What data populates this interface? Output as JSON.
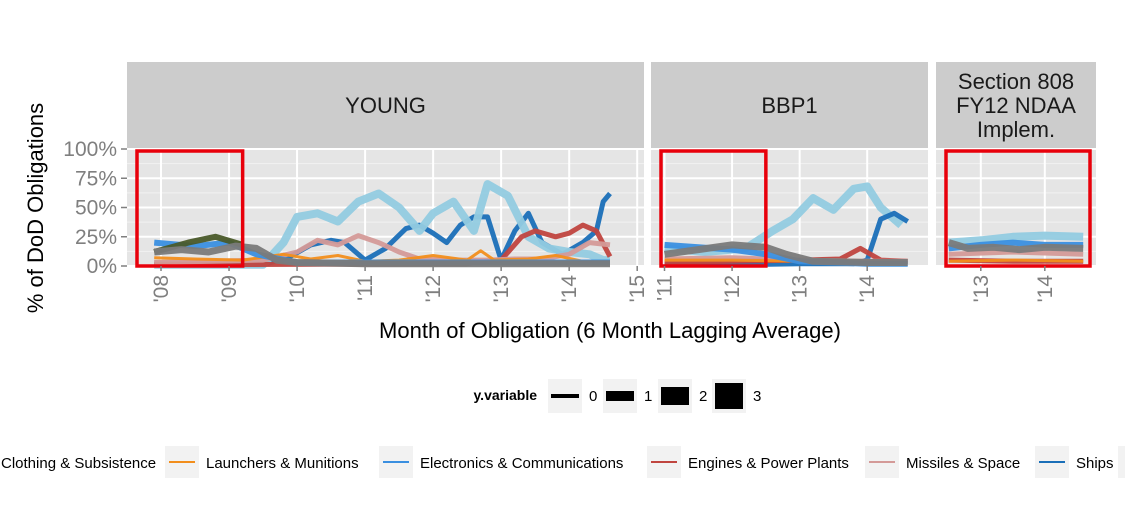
{
  "chart_data": {
    "type": "line",
    "ylabel": "% of DoD Obligations",
    "xlabel": "Month of Obligation (6 Month Lagging Average)",
    "y_ticks": [
      "100%",
      "75%",
      "50%",
      "25%",
      "0%"
    ],
    "ylim": [
      0,
      1
    ],
    "panels": [
      {
        "strip": [
          "YOUNG"
        ],
        "xlim": [
          2007.5,
          2015.1
        ],
        "x_ticks": [
          {
            "value": 2008,
            "label": "'08"
          },
          {
            "value": 2009,
            "label": "'09"
          },
          {
            "value": 2010,
            "label": "'10"
          },
          {
            "value": 2011,
            "label": "'11"
          },
          {
            "value": 2012,
            "label": "'12"
          },
          {
            "value": 2013,
            "label": "'13"
          },
          {
            "value": 2014,
            "label": "'14"
          },
          {
            "value": 2015,
            "label": "'15"
          }
        ],
        "highlight": [
          2007.5,
          2009.2
        ],
        "series": [
          {
            "key": "ships",
            "x": [
              2007.9,
              2008.5,
              2009.0,
              2009.5,
              2009.9,
              2010.2,
              2010.5,
              2010.7,
              2011.0,
              2011.3,
              2011.6,
              2011.8,
              2012.0,
              2012.2,
              2012.4,
              2012.6,
              2012.8,
              2013.0,
              2013.2,
              2013.4,
              2013.6,
              2013.9,
              2014.2,
              2014.4,
              2014.5,
              2014.6
            ],
            "y": [
              0.01,
              0.01,
              0.01,
              0.01,
              0.08,
              0.18,
              0.22,
              0.2,
              0.05,
              0.15,
              0.32,
              0.35,
              0.28,
              0.2,
              0.35,
              0.42,
              0.42,
              0.05,
              0.3,
              0.45,
              0.2,
              0.1,
              0.2,
              0.3,
              0.55,
              0.62
            ]
          },
          {
            "key": "ships_light",
            "x": [
              2007.9,
              2009.0,
              2009.5,
              2009.8,
              2010.0,
              2010.3,
              2010.6,
              2010.9,
              2011.2,
              2011.5,
              2011.8,
              2012.0,
              2012.3,
              2012.6,
              2012.8,
              2013.1,
              2013.4,
              2013.7,
              2014.0,
              2014.3,
              2014.5,
              2014.6
            ],
            "y": [
              0.01,
              0.01,
              0.01,
              0.2,
              0.42,
              0.45,
              0.38,
              0.55,
              0.62,
              0.5,
              0.3,
              0.45,
              0.55,
              0.3,
              0.7,
              0.6,
              0.25,
              0.15,
              0.12,
              0.1,
              0.05,
              0.05
            ]
          },
          {
            "key": "engines",
            "x": [
              2007.9,
              2012.5,
              2013.0,
              2013.3,
              2013.5,
              2013.8,
              2014.0,
              2014.2,
              2014.4,
              2014.6
            ],
            "y": [
              0.01,
              0.02,
              0.05,
              0.25,
              0.3,
              0.25,
              0.28,
              0.35,
              0.3,
              0.08
            ]
          },
          {
            "key": "missiles",
            "x": [
              2007.9,
              2009.5,
              2010.0,
              2010.3,
              2010.6,
              2010.9,
              2011.2,
              2011.5,
              2011.8,
              2012.0,
              2012.4,
              2012.8,
              2013.2,
              2013.6,
              2014.0,
              2014.3,
              2014.6
            ],
            "y": [
              0.03,
              0.05,
              0.12,
              0.22,
              0.18,
              0.26,
              0.2,
              0.12,
              0.06,
              0.06,
              0.05,
              0.05,
              0.06,
              0.06,
              0.1,
              0.2,
              0.18
            ]
          },
          {
            "key": "launchers",
            "x": [
              2007.9,
              2008.5,
              2009.2,
              2009.8,
              2010.2,
              2010.6,
              2011.0,
              2011.5,
              2012.0,
              2012.5,
              2012.7,
              2012.9,
              2013.4,
              2013.8,
              2014.2,
              2014.6
            ],
            "y": [
              0.07,
              0.06,
              0.05,
              0.1,
              0.06,
              0.09,
              0.04,
              0.05,
              0.09,
              0.05,
              0.13,
              0.05,
              0.06,
              0.09,
              0.04,
              0.04
            ]
          },
          {
            "key": "electronics",
            "x": [
              2007.9,
              2008.5,
              2009.0,
              2009.4,
              2010.0,
              2011.0,
              2012.0,
              2013.0,
              2014.0,
              2014.6
            ],
            "y": [
              0.2,
              0.17,
              0.2,
              0.1,
              0.03,
              0.03,
              0.03,
              0.03,
              0.03,
              0.03
            ]
          },
          {
            "key": "clothing",
            "x": [
              2007.9,
              2008.4,
              2008.8,
              2009.2
            ],
            "y": [
              0.12,
              0.2,
              0.25,
              0.18
            ]
          },
          {
            "key": "other",
            "x": [
              2007.9,
              2008.3,
              2008.7,
              2009.1,
              2009.4,
              2009.7,
              2010.0,
              2011.0,
              2012.0,
              2013.0,
              2014.0,
              2014.6
            ],
            "y": [
              0.12,
              0.14,
              0.12,
              0.17,
              0.15,
              0.05,
              0.03,
              0.02,
              0.02,
              0.02,
              0.02,
              0.02
            ]
          }
        ]
      },
      {
        "strip": [
          "BBP1"
        ],
        "xlim": [
          2010.8,
          2014.9
        ],
        "x_ticks": [
          {
            "value": 2011,
            "label": "'11"
          },
          {
            "value": 2012,
            "label": "'12"
          },
          {
            "value": 2013,
            "label": "'13"
          },
          {
            "value": 2014,
            "label": "'14"
          }
        ],
        "highlight": [
          2010.8,
          2012.5
        ],
        "series": [
          {
            "key": "ships_light",
            "x": [
              2011.0,
              2011.6,
              2012.2,
              2012.6,
              2012.9,
              2013.2,
              2013.5,
              2013.8,
              2014.0,
              2014.2,
              2014.5
            ],
            "y": [
              0.15,
              0.12,
              0.15,
              0.3,
              0.4,
              0.58,
              0.48,
              0.66,
              0.68,
              0.5,
              0.35
            ]
          },
          {
            "key": "ships",
            "x": [
              2011.0,
              2012.0,
              2013.0,
              2013.8,
              2014.0,
              2014.2,
              2014.4,
              2014.6
            ],
            "y": [
              0.01,
              0.01,
              0.02,
              0.02,
              0.05,
              0.4,
              0.45,
              0.38
            ]
          },
          {
            "key": "engines",
            "x": [
              2011.0,
              2012.0,
              2013.0,
              2013.6,
              2013.9,
              2014.2,
              2014.6
            ],
            "y": [
              0.03,
              0.04,
              0.05,
              0.06,
              0.15,
              0.05,
              0.04
            ]
          },
          {
            "key": "missiles",
            "x": [
              2011.0,
              2012.0,
              2013.0,
              2014.0,
              2014.6
            ],
            "y": [
              0.06,
              0.07,
              0.05,
              0.04,
              0.04
            ]
          },
          {
            "key": "launchers",
            "x": [
              2011.0,
              2012.0,
              2013.0,
              2014.0,
              2014.6
            ],
            "y": [
              0.05,
              0.05,
              0.04,
              0.03,
              0.03
            ]
          },
          {
            "key": "electronics",
            "x": [
              2011.0,
              2011.5,
              2012.0,
              2012.5,
              2013.0,
              2014.0,
              2014.6
            ],
            "y": [
              0.18,
              0.16,
              0.14,
              0.1,
              0.04,
              0.02,
              0.02
            ]
          },
          {
            "key": "other",
            "x": [
              2011.0,
              2011.5,
              2012.0,
              2012.5,
              2012.8,
              2013.2,
              2014.0,
              2014.6
            ],
            "y": [
              0.1,
              0.14,
              0.18,
              0.16,
              0.1,
              0.04,
              0.03,
              0.03
            ]
          }
        ]
      },
      {
        "strip": [
          "Section 808",
          "FY12 NDAA",
          "Implem."
        ],
        "xlim": [
          2012.3,
          2014.8
        ],
        "x_ticks": [
          {
            "value": 2013,
            "label": "'13"
          },
          {
            "value": 2014,
            "label": "'14"
          }
        ],
        "highlight": [
          2012.3,
          2014.8
        ],
        "series": [
          {
            "key": "ships_light",
            "x": [
              2012.5,
              2013.0,
              2013.5,
              2014.0,
              2014.6
            ],
            "y": [
              0.2,
              0.22,
              0.25,
              0.26,
              0.25
            ]
          },
          {
            "key": "electronics",
            "x": [
              2012.5,
              2013.0,
              2013.5,
              2014.0,
              2014.6
            ],
            "y": [
              0.15,
              0.18,
              0.2,
              0.18,
              0.18
            ]
          },
          {
            "key": "missiles",
            "x": [
              2012.5,
              2013.5,
              2014.6
            ],
            "y": [
              0.1,
              0.12,
              0.1
            ]
          },
          {
            "key": "engines",
            "x": [
              2012.5,
              2013.5,
              2014.6
            ],
            "y": [
              0.05,
              0.04,
              0.04
            ]
          },
          {
            "key": "launchers",
            "x": [
              2012.5,
              2013.5,
              2014.6
            ],
            "y": [
              0.04,
              0.05,
              0.04
            ]
          },
          {
            "key": "other",
            "x": [
              2012.5,
              2012.8,
              2013.2,
              2013.6,
              2014.0,
              2014.6
            ],
            "y": [
              0.2,
              0.15,
              0.16,
              0.14,
              0.16,
              0.15
            ]
          }
        ]
      }
    ],
    "size_legend": {
      "title": "y.variable",
      "items": [
        "0",
        "1",
        "2",
        "3"
      ]
    },
    "color_legend": [
      {
        "key": "clothing",
        "label": "Clothing & Subsistence",
        "color": "#4a5a2a"
      },
      {
        "key": "launchers",
        "label": "Launchers & Munitions",
        "color": "#f28e1c"
      },
      {
        "key": "electronics",
        "label": "Electronics & Communications",
        "color": "#3a8fe0"
      },
      {
        "key": "engines",
        "label": "Engines & Power Plants",
        "color": "#c0453f"
      },
      {
        "key": "missiles",
        "label": "Missiles & Space",
        "color": "#d49a98"
      },
      {
        "key": "ships",
        "label": "Ships",
        "color": "#1a6fb8"
      }
    ],
    "unlabeled_colors": {
      "ships_light": "#92cbe0",
      "other": "#7a7a7a"
    },
    "highlight_color": "#e8000b",
    "grid": true
  }
}
